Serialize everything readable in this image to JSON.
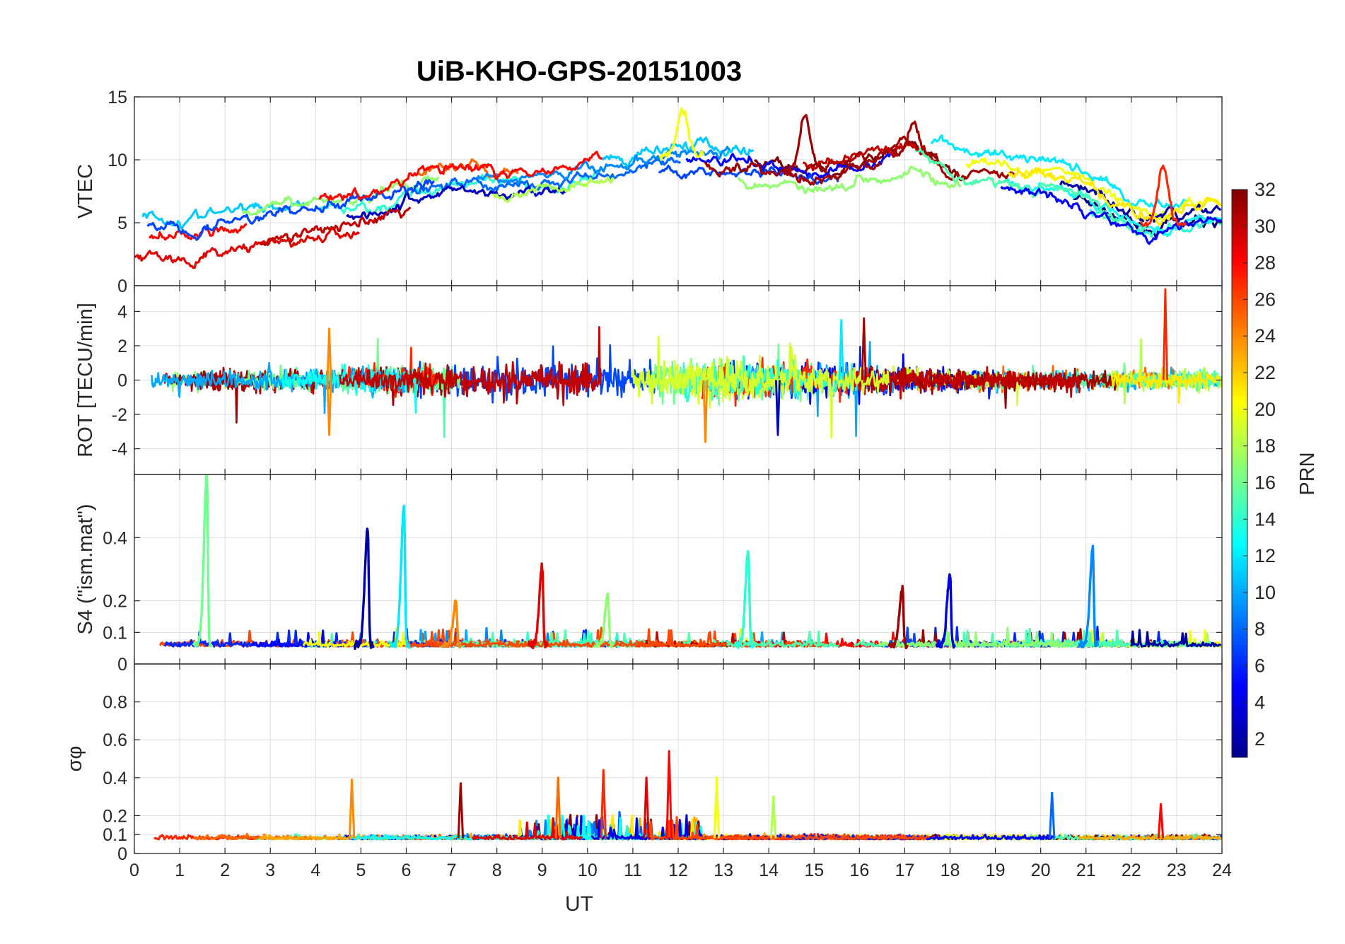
{
  "chart_data": {
    "title": "UiB-KHO-GPS-20151003",
    "xlabel": "UT",
    "x_ticks": [
      0,
      1,
      2,
      3,
      4,
      5,
      6,
      7,
      8,
      9,
      10,
      11,
      12,
      13,
      14,
      15,
      16,
      17,
      18,
      19,
      20,
      21,
      22,
      23,
      24
    ],
    "xlim": [
      0,
      24
    ],
    "grid": true,
    "colorbar": {
      "label": "PRN",
      "ticks": [
        2,
        4,
        6,
        8,
        10,
        12,
        14,
        16,
        18,
        20,
        22,
        24,
        26,
        28,
        30,
        32
      ],
      "range": [
        1,
        32
      ],
      "colormap": "jet",
      "placement": "right"
    },
    "panels": [
      {
        "id": "vtec",
        "type": "line",
        "ylabel": "VTEC",
        "ylim": [
          0,
          15
        ],
        "y_ticks": [
          0,
          5,
          10,
          15
        ],
        "y_tick_labels": [
          "0",
          "5",
          "10",
          "15"
        ],
        "baseline_profile": {
          "x": [
            0,
            1,
            2,
            3,
            4,
            5,
            6,
            7,
            8,
            9,
            10,
            11,
            12,
            13,
            14,
            15,
            16,
            17,
            18,
            19,
            20,
            21,
            22,
            23,
            24
          ],
          "y": [
            4.3,
            4.0,
            4.6,
            5.1,
            5.8,
            6.3,
            7.4,
            8.6,
            7.6,
            8.2,
            8.5,
            9.4,
            10.4,
            10.1,
            9.6,
            9.1,
            10.1,
            10.9,
            8.6,
            8.2,
            7.9,
            6.6,
            4.6,
            5.0,
            5.8
          ]
        },
        "peak_events": [
          {
            "x": 12.1,
            "y": 14.0,
            "prn": 20
          },
          {
            "x": 14.8,
            "y": 13.6,
            "prn": 31
          },
          {
            "x": 17.2,
            "y": 13.0,
            "prn": 31
          },
          {
            "x": 22.7,
            "y": 9.5,
            "prn": 27
          }
        ]
      },
      {
        "id": "rot",
        "type": "line",
        "ylabel": "ROT [TECU/min]",
        "ylim": [
          -5.5,
          5.5
        ],
        "y_ticks": [
          -4,
          -2,
          0,
          2,
          4
        ],
        "y_tick_labels": [
          "-4",
          "-2",
          "0",
          "2",
          "4"
        ],
        "peak_events": [
          {
            "x": 22.75,
            "y": 5.3,
            "prn": 27
          },
          {
            "x": 15.6,
            "y": 3.5,
            "prn": 12
          },
          {
            "x": 16.1,
            "y": 3.6,
            "prn": 31
          },
          {
            "x": 12.6,
            "y": -3.6,
            "prn": 24
          },
          {
            "x": 14.2,
            "y": -3.2,
            "prn": 3
          },
          {
            "x": 4.3,
            "y": -3.2,
            "prn": 24
          },
          {
            "x": 4.3,
            "y": 3.0,
            "prn": 24
          }
        ]
      },
      {
        "id": "s4",
        "type": "line",
        "ylabel": "S4 (\"ism.mat\")",
        "ylim": [
          0,
          0.6
        ],
        "y_ticks": [
          0,
          0.1,
          0.2,
          0.4
        ],
        "y_tick_labels": [
          "0",
          "0.1",
          "0.2",
          "0.4"
        ],
        "peak_events": [
          {
            "x": 1.6,
            "y": 0.6,
            "prn": 16
          },
          {
            "x": 5.15,
            "y": 0.43,
            "prn": 2
          },
          {
            "x": 5.95,
            "y": 0.5,
            "prn": 12
          },
          {
            "x": 13.55,
            "y": 0.36,
            "prn": 14
          },
          {
            "x": 21.15,
            "y": 0.36,
            "prn": 9
          },
          {
            "x": 18.0,
            "y": 0.29,
            "prn": 4
          },
          {
            "x": 16.95,
            "y": 0.24,
            "prn": 31
          },
          {
            "x": 9.0,
            "y": 0.31,
            "prn": 29
          },
          {
            "x": 7.1,
            "y": 0.2,
            "prn": 24
          },
          {
            "x": 10.45,
            "y": 0.22,
            "prn": 17
          }
        ]
      },
      {
        "id": "sigma_phi",
        "type": "line",
        "ylabel": "σφ",
        "ylim": [
          0,
          1
        ],
        "y_ticks": [
          0,
          0.1,
          0.2,
          0.4,
          0.6,
          0.8
        ],
        "y_tick_labels": [
          "0",
          "0.1",
          "0.2",
          "0.4",
          "0.6",
          "0.8"
        ],
        "peak_events": [
          {
            "x": 11.8,
            "y": 0.54,
            "prn": 28
          },
          {
            "x": 10.35,
            "y": 0.44,
            "prn": 27
          },
          {
            "x": 11.3,
            "y": 0.4,
            "prn": 29
          },
          {
            "x": 9.35,
            "y": 0.4,
            "prn": 25
          },
          {
            "x": 12.85,
            "y": 0.4,
            "prn": 20
          },
          {
            "x": 4.8,
            "y": 0.39,
            "prn": 24
          },
          {
            "x": 7.2,
            "y": 0.37,
            "prn": 31
          },
          {
            "x": 20.25,
            "y": 0.32,
            "prn": 8
          },
          {
            "x": 14.1,
            "y": 0.3,
            "prn": 18
          },
          {
            "x": 22.65,
            "y": 0.26,
            "prn": 28
          }
        ]
      }
    ]
  }
}
